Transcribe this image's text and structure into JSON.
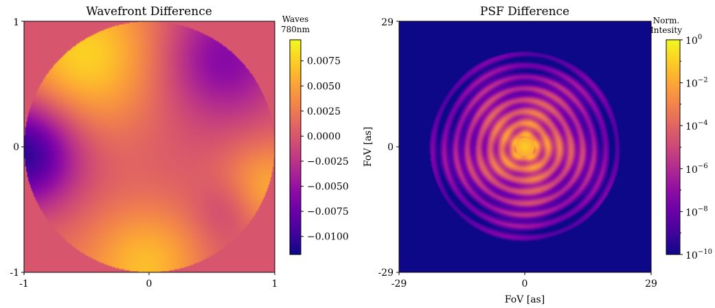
{
  "chart_data": [
    {
      "type": "heatmap",
      "title": "Wavefront Difference",
      "xlabel": "",
      "ylabel": "",
      "x_ticks": [
        "-1",
        "0",
        "1"
      ],
      "y_ticks": [
        "1",
        "0",
        "-1"
      ],
      "xlim": [
        -1,
        1
      ],
      "ylim": [
        -1,
        1
      ],
      "colormap": "plasma",
      "background_value": 0.0,
      "colorbar": {
        "label_line1": "Waves",
        "label_line2": "780nm",
        "range": [
          -0.0118,
          0.0096
        ],
        "ticks": [
          "0.0075",
          "0.0050",
          "0.0025",
          "0.0000",
          "−0.0025",
          "−0.0050",
          "−0.0075",
          "−0.0100"
        ],
        "tick_values": [
          0.0075,
          0.005,
          0.0025,
          0.0,
          -0.0025,
          -0.005,
          -0.0075,
          -0.01
        ]
      },
      "features": {
        "top_left_high": 0.0085,
        "top_right_low": -0.007,
        "left_edge_low": -0.0115,
        "bottom_high": 0.0065,
        "right_lobe_high": 0.006,
        "bottom_right_dip": -0.0025
      }
    },
    {
      "type": "heatmap",
      "title": "PSF Difference",
      "xlabel": "FoV [as]",
      "ylabel": "FoV [as]",
      "x_ticks": [
        "-29",
        "0",
        "29"
      ],
      "y_ticks": [
        "29",
        "0",
        "-29"
      ],
      "xlim": [
        -29,
        29
      ],
      "ylim": [
        -29,
        29
      ],
      "colormap": "plasma",
      "scale": "log",
      "colorbar": {
        "label_line1": "Norm.",
        "label_line2": "Intesity",
        "range": [
          1e-10,
          1
        ],
        "ticks": [
          {
            "base": "10",
            "exp": "0"
          },
          {
            "base": "10",
            "exp": "−2"
          },
          {
            "base": "10",
            "exp": "−4"
          },
          {
            "base": "10",
            "exp": "−6"
          },
          {
            "base": "10",
            "exp": "−8"
          },
          {
            "base": "10",
            "exp": "−10"
          }
        ],
        "tick_log_values": [
          0,
          -2,
          -4,
          -6,
          -8,
          -10
        ]
      }
    }
  ]
}
